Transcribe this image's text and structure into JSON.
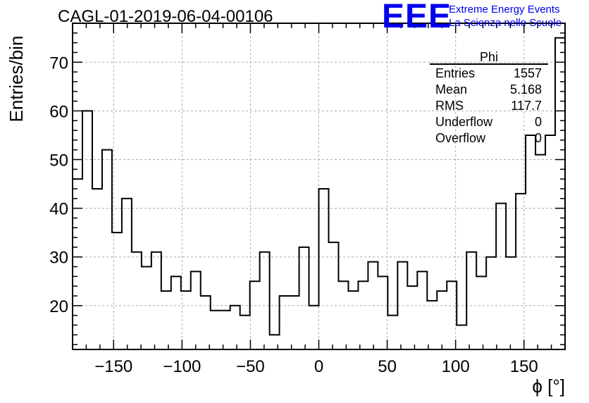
{
  "title": "CAGL-01-2019-06-04-00106",
  "logo": {
    "mark": "EEE",
    "line1": "Extreme Energy Events",
    "line2": "La Scienza nelle Scuole",
    "color": "#0000ee"
  },
  "stats": {
    "name": "Phi",
    "rows": [
      {
        "label": "Entries",
        "value": "1557"
      },
      {
        "label": "Mean",
        "value": "5.168"
      },
      {
        "label": "RMS",
        "value": "117.7"
      },
      {
        "label": "Underflow",
        "value": "0"
      },
      {
        "label": "Overflow",
        "value": "0"
      }
    ]
  },
  "chart_data": {
    "type": "bar",
    "style": "step-histogram",
    "xlabel": "ϕ [°]",
    "ylabel": "Entries/bin",
    "xlim": [
      -180,
      180
    ],
    "ylim": [
      11,
      78
    ],
    "bin_width": 7.2,
    "x_ticks": [
      -150,
      -100,
      -50,
      0,
      50,
      100,
      150
    ],
    "x_tick_labels": [
      "−150",
      "−100",
      "−50",
      "0",
      "50",
      "100",
      "150"
    ],
    "y_ticks": [
      20,
      30,
      40,
      50,
      60,
      70
    ],
    "grid": true,
    "values": [
      46,
      60,
      44,
      52,
      35,
      42,
      31,
      28,
      31,
      23,
      26,
      23,
      27,
      22,
      19,
      19,
      20,
      18,
      25,
      31,
      14,
      22,
      22,
      32,
      20,
      44,
      33,
      25,
      23,
      25,
      29,
      26,
      18,
      29,
      24,
      27,
      21,
      23,
      25,
      16,
      31,
      26,
      30,
      41,
      30,
      43,
      55,
      51,
      55,
      75
    ]
  }
}
